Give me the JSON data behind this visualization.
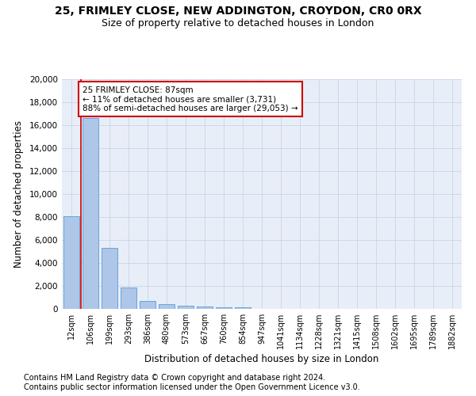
{
  "title1": "25, FRIMLEY CLOSE, NEW ADDINGTON, CROYDON, CR0 0RX",
  "title2": "Size of property relative to detached houses in London",
  "xlabel": "Distribution of detached houses by size in London",
  "ylabel": "Number of detached properties",
  "categories": [
    "12sqm",
    "106sqm",
    "199sqm",
    "293sqm",
    "386sqm",
    "480sqm",
    "573sqm",
    "667sqm",
    "760sqm",
    "854sqm",
    "947sqm",
    "1041sqm",
    "1134sqm",
    "1228sqm",
    "1321sqm",
    "1415sqm",
    "1508sqm",
    "1602sqm",
    "1695sqm",
    "1789sqm",
    "1882sqm"
  ],
  "values": [
    8100,
    16600,
    5300,
    1850,
    700,
    380,
    280,
    200,
    160,
    120,
    0,
    0,
    0,
    0,
    0,
    0,
    0,
    0,
    0,
    0,
    0
  ],
  "bar_color": "#aec6e8",
  "bar_edge_color": "#5b9bd5",
  "vline_color": "#cc0000",
  "annotation_text": "25 FRIMLEY CLOSE: 87sqm\n← 11% of detached houses are smaller (3,731)\n88% of semi-detached houses are larger (29,053) →",
  "annotation_box_color": "#ffffff",
  "annotation_box_edge": "#cc0000",
  "ylim": [
    0,
    20000
  ],
  "yticks": [
    0,
    2000,
    4000,
    6000,
    8000,
    10000,
    12000,
    14000,
    16000,
    18000,
    20000
  ],
  "grid_color": "#c8d4e8",
  "bg_color": "#e8eef7",
  "footnote1": "Contains HM Land Registry data © Crown copyright and database right 2024.",
  "footnote2": "Contains public sector information licensed under the Open Government Licence v3.0.",
  "title1_fontsize": 10,
  "title2_fontsize": 9,
  "xlabel_fontsize": 8.5,
  "ylabel_fontsize": 8.5,
  "footnote_fontsize": 7
}
